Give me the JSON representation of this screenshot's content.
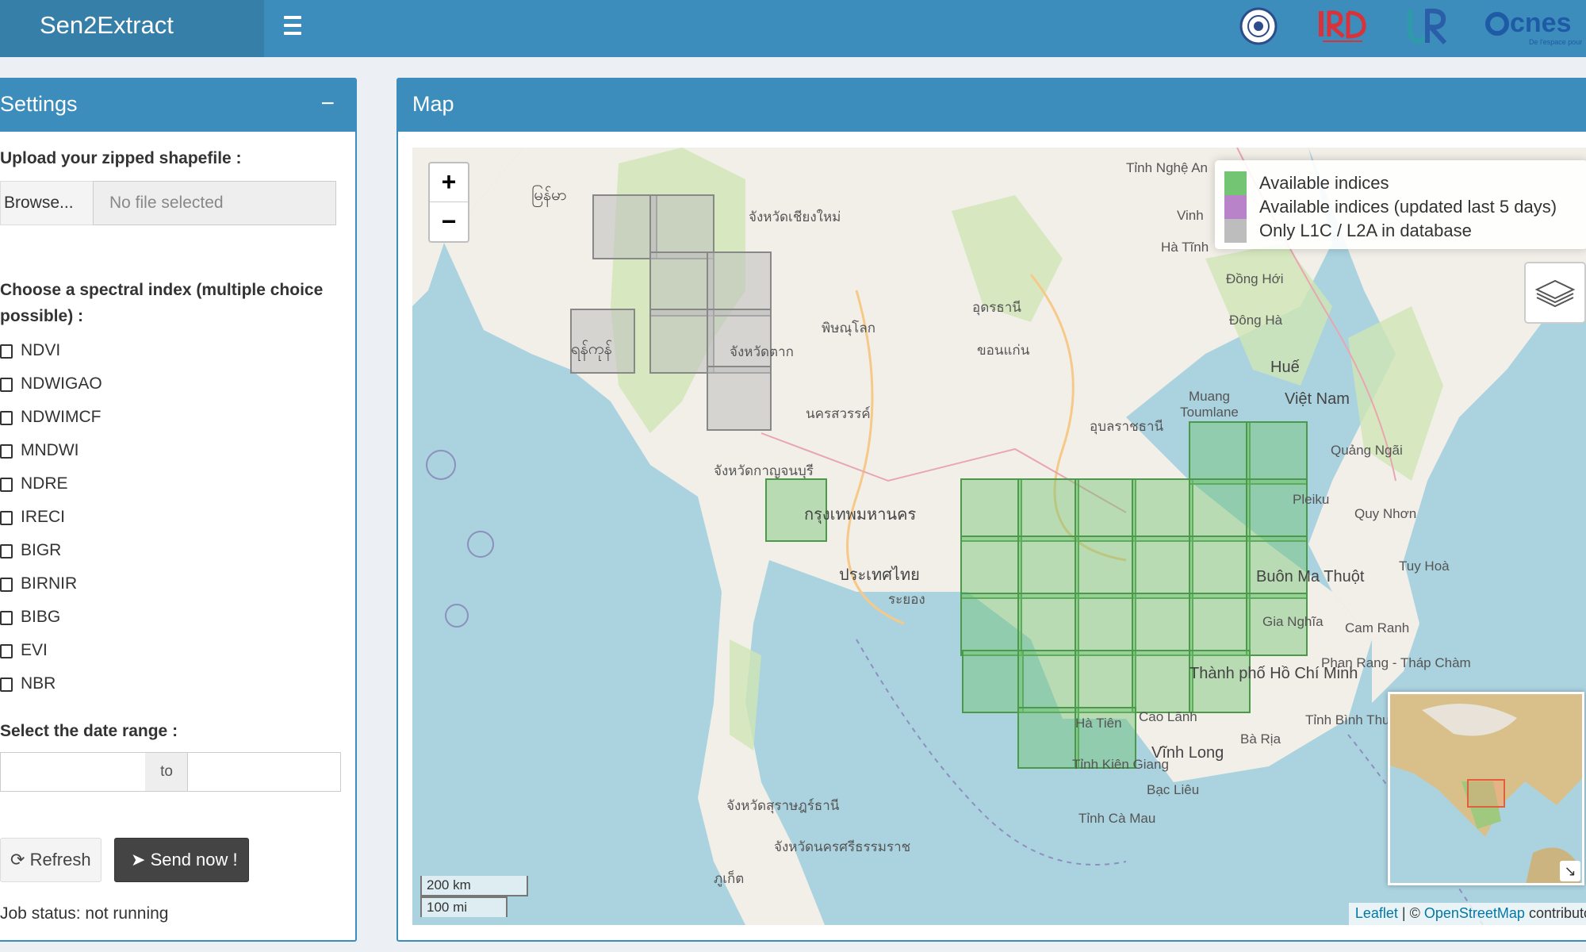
{
  "app": {
    "title": "Sen2Extract",
    "partner_logos": [
      "LRC",
      "IRD",
      "UR",
      "cnes"
    ],
    "cnes_tagline": "De l'espace pour"
  },
  "settings": {
    "title": "Settings",
    "collapse_symbol": "−",
    "upload_label": "Upload your zipped shapefile :",
    "browse_label": "Browse...",
    "file_placeholder": "No file selected",
    "index_label_line1": "Choose a spectral index (multiple choice",
    "index_label_line2": "possible) :",
    "indices": [
      "NDVI",
      "NDWIGAO",
      "NDWIMCF",
      "MNDWI",
      "NDRE",
      "IRECI",
      "BIGR",
      "BIRNIR",
      "BIBG",
      "EVI",
      "NBR"
    ],
    "date_label": "Select the date range :",
    "date_to": "to",
    "date_start": "",
    "date_end": "",
    "refresh_label": "Refresh",
    "send_label": "Send now !",
    "job_status": "Job status: not running"
  },
  "map": {
    "title": "Map",
    "zoom_in": "+",
    "zoom_out": "−",
    "legend": [
      {
        "label": "Available indices",
        "color": "#73c473"
      },
      {
        "label": "Available indices (updated last 5 days)",
        "color": "#b983c9"
      },
      {
        "label": "Only L1C / L2A in database",
        "color": "#bdbdbd"
      }
    ],
    "scale_km": "200 km",
    "scale_mi": "100 mi",
    "attribution_leaflet": "Leaflet",
    "attribution_sep": " | © ",
    "attribution_osm": "OpenStreetMap",
    "attribution_tail": " contributors",
    "places": [
      "Vinh",
      "Hà Tĩnh",
      "Đồng Hới",
      "Đông Hà",
      "Huế",
      "Việt Nam",
      "Muang Toumlane",
      "Quảng Ngãi",
      "Pleiku",
      "Quy Nhơn",
      "Tuy Hoà",
      "Buôn Ma Thuột",
      "Gia Nghĩa",
      "Cam Ranh",
      "Phan Rang - Tháp Chàm",
      "Thành phố Hồ Chí Minh",
      "Bà Rịa",
      "Cao Lãnh",
      "Vĩnh Long",
      "Bạc Liêu",
      "Hà Tiên",
      "Tỉnh Kiên Giang",
      "Tỉnh Cà Mau",
      "Tỉnh Nghệ An",
      "Tỉnh Bình Thuận",
      "พิษณุโลก",
      "ประเทศไทย",
      "กรุงเทพมหานคร",
      "จังหวัดตาก",
      "จังหวัดเชียงใหม่",
      "นครสวรรค์",
      "จังหวัดกาญจนบุรี",
      "ระยอง",
      "ภูเก็ต",
      "จังหวัดสุราษฎร์ธานี",
      "จังหวัดนครศรีธรรมราช",
      "อุบลราชธานี",
      "ขอนแก่น",
      "อุดรธานี",
      "မြန်မာ",
      "ရန်ကုန်"
    ]
  }
}
